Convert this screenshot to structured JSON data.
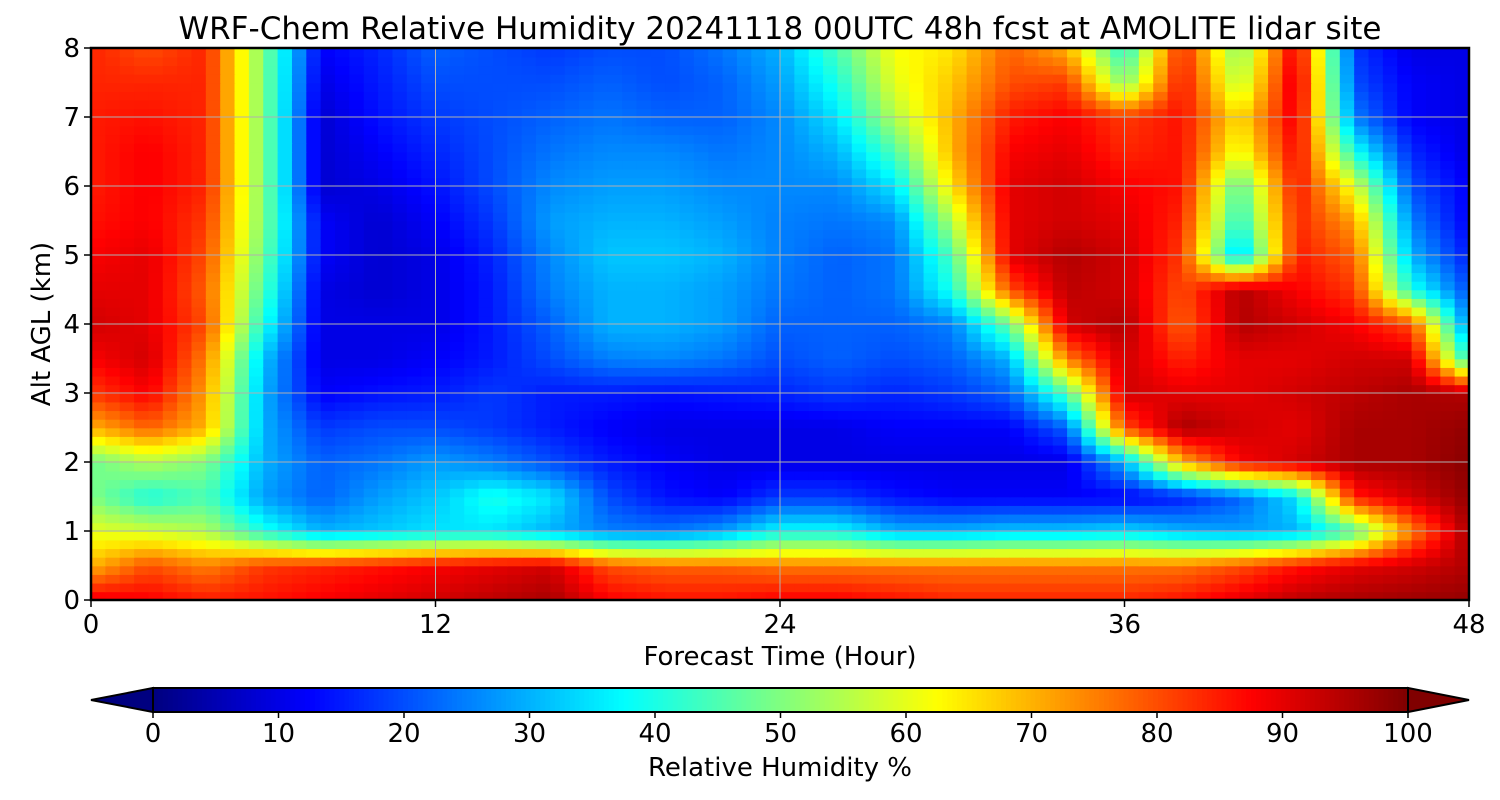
{
  "chart_data": {
    "type": "heatmap",
    "title": "WRF-Chem Relative Humidity 20241118 00UTC 48h fcst at AMOLITE lidar site",
    "xlabel": "Forecast Time (Hour)",
    "ylabel": "Alt AGL (km)",
    "xlim": [
      0,
      48
    ],
    "ylim": [
      0,
      8
    ],
    "xticks": [
      0,
      12,
      24,
      36,
      48
    ],
    "yticks": [
      0,
      1,
      2,
      3,
      4,
      5,
      6,
      7,
      8
    ],
    "grid": true,
    "x": [
      0,
      2,
      4,
      6,
      8,
      10,
      12,
      14,
      16,
      18,
      20,
      22,
      24,
      26,
      28,
      30,
      32,
      34,
      36,
      38,
      40,
      42,
      44,
      46,
      48
    ],
    "y": [
      0,
      0.5,
      1,
      1.5,
      2,
      2.5,
      3,
      3.5,
      4,
      4.5,
      5,
      5.5,
      6,
      6.5,
      7,
      7.5,
      8
    ],
    "z": [
      [
        90,
        88,
        85,
        86,
        88,
        90,
        92,
        94,
        96,
        88,
        86,
        86,
        88,
        88,
        86,
        84,
        84,
        84,
        84,
        86,
        90,
        94,
        96,
        97,
        98
      ],
      [
        70,
        80,
        75,
        82,
        84,
        86,
        88,
        90,
        92,
        80,
        78,
        78,
        76,
        76,
        76,
        76,
        76,
        76,
        76,
        76,
        80,
        86,
        90,
        92,
        95
      ],
      [
        60,
        58,
        55,
        40,
        30,
        32,
        35,
        35,
        30,
        25,
        24,
        28,
        38,
        38,
        30,
        30,
        32,
        32,
        34,
        30,
        28,
        30,
        45,
        75,
        96
      ],
      [
        50,
        40,
        45,
        28,
        22,
        28,
        32,
        40,
        35,
        20,
        14,
        12,
        18,
        18,
        14,
        12,
        12,
        12,
        12,
        15,
        22,
        35,
        85,
        92,
        98
      ],
      [
        48,
        55,
        50,
        30,
        22,
        24,
        28,
        25,
        20,
        15,
        12,
        10,
        10,
        10,
        10,
        10,
        10,
        10,
        30,
        70,
        88,
        92,
        96,
        96,
        99
      ],
      [
        70,
        78,
        70,
        30,
        18,
        20,
        20,
        18,
        15,
        12,
        10,
        10,
        10,
        10,
        12,
        12,
        12,
        22,
        80,
        96,
        92,
        90,
        96,
        96,
        98
      ],
      [
        82,
        88,
        72,
        30,
        12,
        14,
        15,
        18,
        15,
        15,
        14,
        15,
        16,
        18,
        16,
        18,
        22,
        45,
        92,
        90,
        90,
        92,
        94,
        96,
        95
      ],
      [
        88,
        92,
        75,
        32,
        10,
        10,
        12,
        15,
        20,
        25,
        26,
        24,
        20,
        22,
        20,
        22,
        30,
        75,
        92,
        84,
        90,
        90,
        92,
        92,
        40
      ],
      [
        92,
        90,
        80,
        40,
        10,
        10,
        10,
        15,
        22,
        30,
        30,
        28,
        22,
        22,
        22,
        25,
        48,
        92,
        95,
        78,
        95,
        92,
        88,
        80,
        25
      ],
      [
        90,
        90,
        78,
        45,
        10,
        8,
        10,
        15,
        25,
        30,
        30,
        28,
        24,
        22,
        24,
        40,
        80,
        94,
        92,
        80,
        95,
        88,
        82,
        40,
        20
      ],
      [
        88,
        90,
        80,
        48,
        12,
        8,
        10,
        16,
        26,
        32,
        32,
        30,
        25,
        22,
        24,
        45,
        90,
        95,
        92,
        82,
        30,
        85,
        78,
        30,
        15
      ],
      [
        86,
        88,
        82,
        50,
        12,
        8,
        12,
        18,
        28,
        30,
        30,
        28,
        25,
        24,
        26,
        55,
        90,
        92,
        90,
        84,
        40,
        84,
        72,
        25,
        12
      ],
      [
        85,
        88,
        84,
        50,
        8,
        10,
        14,
        20,
        26,
        28,
        28,
        26,
        26,
        26,
        35,
        65,
        90,
        92,
        88,
        86,
        45,
        86,
        60,
        20,
        12
      ],
      [
        85,
        88,
        84,
        50,
        8,
        12,
        16,
        20,
        24,
        26,
        26,
        24,
        26,
        30,
        45,
        70,
        88,
        90,
        84,
        86,
        60,
        88,
        40,
        16,
        10
      ],
      [
        85,
        86,
        84,
        50,
        8,
        14,
        18,
        20,
        22,
        24,
        22,
        22,
        26,
        35,
        55,
        70,
        85,
        88,
        82,
        86,
        65,
        90,
        25,
        12,
        10
      ],
      [
        84,
        84,
        84,
        50,
        10,
        15,
        20,
        20,
        20,
        22,
        20,
        22,
        28,
        40,
        60,
        68,
        80,
        82,
        50,
        86,
        55,
        92,
        20,
        12,
        10
      ],
      [
        84,
        80,
        84,
        50,
        12,
        16,
        22,
        20,
        18,
        20,
        20,
        24,
        30,
        45,
        62,
        65,
        78,
        70,
        40,
        84,
        50,
        90,
        18,
        10,
        10
      ]
    ],
    "colorbar": {
      "label": "Relative Humidity %",
      "min": 0,
      "max": 100,
      "ticks": [
        0,
        10,
        20,
        30,
        40,
        50,
        60,
        70,
        80,
        90,
        100
      ],
      "extend": "both",
      "colormap": "jet"
    }
  }
}
